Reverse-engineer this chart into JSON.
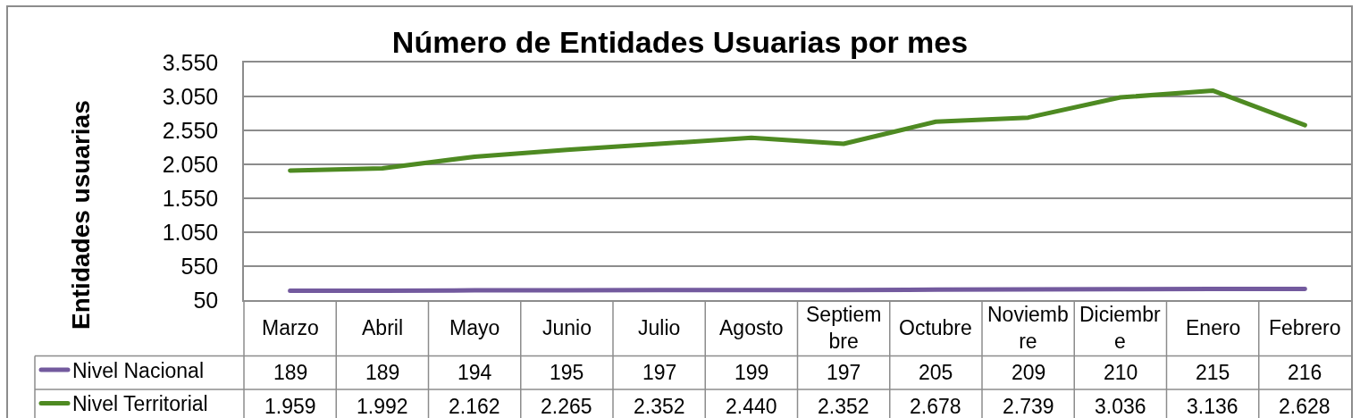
{
  "chart_data": {
    "type": "line",
    "title": "Número de Entidades Usuarias por mes",
    "ylabel": "Entidades usuarias",
    "categories": [
      "Marzo",
      "Abril",
      "Mayo",
      "Junio",
      "Julio",
      "Agosto",
      "Septiembre",
      "Octubre",
      "Noviembre",
      "Diciembre",
      "Enero",
      "Febrero"
    ],
    "series": [
      {
        "name": "Nivel Nacional",
        "color": "#735a9e",
        "values": [
          189,
          189,
          194,
          195,
          197,
          199,
          197,
          205,
          209,
          210,
          215,
          216
        ],
        "value_labels": [
          "189",
          "189",
          "194",
          "195",
          "197",
          "199",
          "197",
          "205",
          "209",
          "210",
          "215",
          "216"
        ]
      },
      {
        "name": "Nivel Territorial",
        "color": "#4e8a22",
        "values": [
          1959,
          1992,
          2162,
          2265,
          2352,
          2440,
          2352,
          2678,
          2739,
          3036,
          3136,
          2628
        ],
        "value_labels": [
          "1.959",
          "1.992",
          "2.162",
          "2.265",
          "2.352",
          "2.440",
          "2.352",
          "2.678",
          "2.739",
          "3.036",
          "3.136",
          "2.628"
        ]
      }
    ],
    "ylim": [
      50,
      3550
    ],
    "yticks": [
      50,
      550,
      {
        "value": 1050,
        "label": "1.050"
      },
      {
        "value": 1550,
        "label": "1.550"
      },
      {
        "value": 2050,
        "label": "2.050"
      },
      {
        "value": 2550,
        "label": "2.550"
      },
      {
        "value": 3050,
        "label": "3.050"
      },
      {
        "value": 3550,
        "label": "3.550"
      }
    ],
    "grid": "y",
    "legend": "bottom left",
    "marker": "none",
    "line_style": "solid"
  }
}
